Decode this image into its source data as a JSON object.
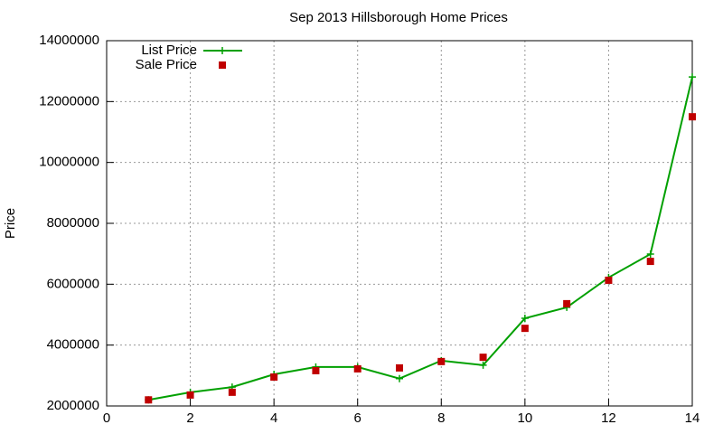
{
  "chart_data": {
    "type": "line",
    "title": "Sep 2013 Hillsborough Home Prices",
    "y_label": "Price",
    "x": [
      1,
      2,
      3,
      4,
      5,
      6,
      7,
      8,
      9,
      10,
      11,
      12,
      13,
      14
    ],
    "series": [
      {
        "name": "List Price",
        "color": "#00a000",
        "style": "linespoints",
        "values": [
          2200000,
          2450000,
          2620000,
          3040000,
          3280000,
          3280000,
          2900000,
          3490000,
          3340000,
          4880000,
          5240000,
          6220000,
          6990000,
          12810000
        ]
      },
      {
        "name": "Sale Price",
        "color": "#c00000",
        "style": "points",
        "values": [
          2200000,
          2360000,
          2450000,
          2950000,
          3160000,
          3220000,
          3250000,
          3460000,
          3600000,
          4550000,
          5360000,
          6130000,
          6750000,
          11500000
        ]
      }
    ],
    "xlim": [
      0,
      14
    ],
    "xticks": [
      0,
      2,
      4,
      6,
      8,
      10,
      12,
      14
    ],
    "ylim": [
      2000000,
      14000000
    ],
    "yticks": [
      2000000,
      4000000,
      6000000,
      8000000,
      10000000,
      12000000,
      14000000
    ],
    "grid": true,
    "legend": "top-left"
  }
}
